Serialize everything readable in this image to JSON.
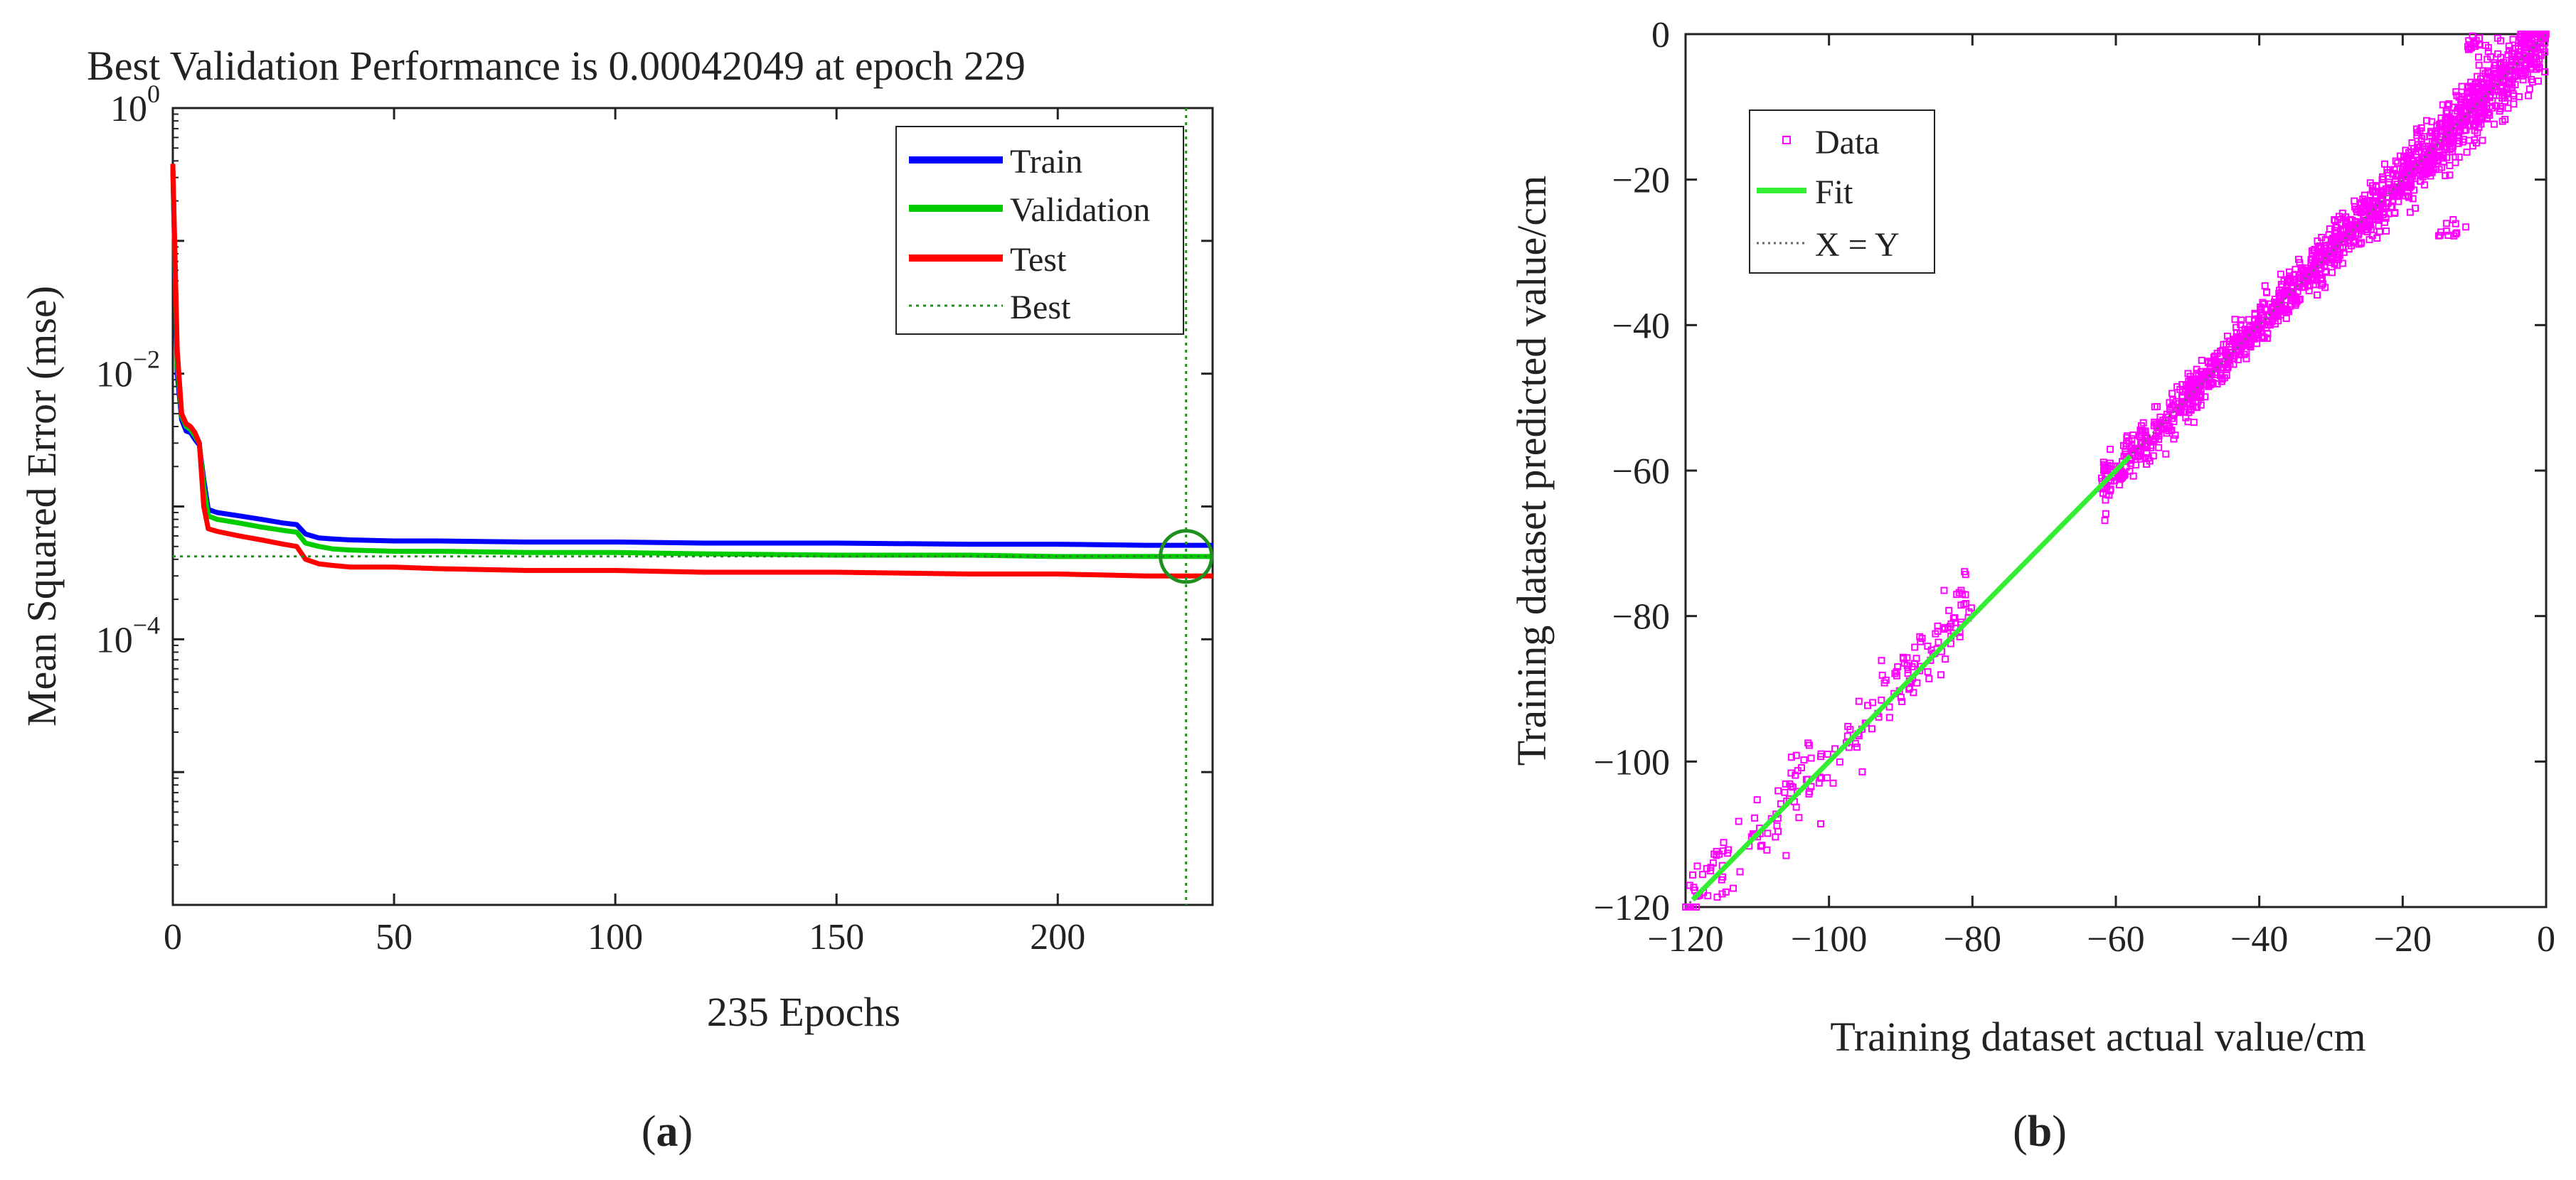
{
  "captions": {
    "a": "(a)",
    "b": "(b)",
    "a_letter": "a",
    "b_letter": "b"
  },
  "colors": {
    "train": "#0000ff",
    "validation": "#00cc00",
    "test": "#ff0000",
    "best": "#1f8f1f",
    "data": "#ff00ff",
    "fit": "#33ee33",
    "xy": "#666666"
  },
  "chart_data": [
    {
      "id": "a",
      "type": "line",
      "title": "Best Validation Performance is 0.00042049 at epoch 229",
      "xlabel": "235 Epochs",
      "ylabel": "Mean Squared Error (mse)",
      "xlim": [
        0,
        235
      ],
      "ylim": [
        1e-06,
        1
      ],
      "yscale": "log",
      "xticks": [
        0,
        50,
        100,
        150,
        200
      ],
      "yticks": [
        {
          "value": 1,
          "base": "10",
          "exp": "0"
        },
        {
          "value": 0.01,
          "base": "10",
          "exp": "−2"
        },
        {
          "value": 0.0001,
          "base": "10",
          "exp": "−4"
        }
      ],
      "legend_position": "top-right",
      "series": [
        {
          "name": "Train",
          "x": [
            0,
            1,
            2,
            3,
            4,
            5,
            6,
            7,
            8,
            10,
            15,
            20,
            25,
            28,
            30,
            33,
            36,
            40,
            50,
            60,
            80,
            100,
            120,
            150,
            180,
            200,
            220,
            235
          ],
          "y": [
            0.35,
            0.01,
            0.0045,
            0.0037,
            0.0036,
            0.0032,
            0.0029,
            0.0016,
            0.00095,
            0.0009,
            0.00085,
            0.0008,
            0.00075,
            0.00073,
            0.00062,
            0.00058,
            0.00057,
            0.00056,
            0.00055,
            0.00055,
            0.00054,
            0.00054,
            0.00053,
            0.00053,
            0.00052,
            0.00052,
            0.00051,
            0.00051
          ]
        },
        {
          "name": "Validation",
          "x": [
            0,
            1,
            2,
            3,
            4,
            5,
            6,
            7,
            8,
            10,
            15,
            20,
            25,
            28,
            30,
            33,
            36,
            40,
            50,
            60,
            80,
            100,
            120,
            150,
            180,
            200,
            229,
            235
          ],
          "y": [
            0.36,
            0.012,
            0.0048,
            0.004,
            0.0038,
            0.0034,
            0.003,
            0.0014,
            0.00085,
            0.0008,
            0.00075,
            0.0007,
            0.00066,
            0.00064,
            0.00053,
            0.0005,
            0.00048,
            0.00047,
            0.00046,
            0.00046,
            0.00045,
            0.00045,
            0.00044,
            0.00043,
            0.00043,
            0.00042,
            0.00042049,
            0.00042
          ]
        },
        {
          "name": "Test",
          "x": [
            0,
            1,
            2,
            3,
            4,
            5,
            6,
            7,
            8,
            10,
            15,
            20,
            25,
            28,
            30,
            33,
            36,
            40,
            50,
            60,
            80,
            100,
            120,
            150,
            180,
            200,
            220,
            235
          ],
          "y": [
            0.38,
            0.015,
            0.005,
            0.0042,
            0.004,
            0.0036,
            0.003,
            0.001,
            0.00068,
            0.00065,
            0.0006,
            0.00056,
            0.00052,
            0.0005,
            0.0004,
            0.00037,
            0.00036,
            0.00035,
            0.00035,
            0.00034,
            0.00033,
            0.00033,
            0.00032,
            0.00032,
            0.00031,
            0.00031,
            0.0003,
            0.0003
          ]
        }
      ],
      "best": {
        "name": "Best",
        "epoch": 229,
        "value": 0.00042049
      }
    },
    {
      "id": "b",
      "type": "scatter",
      "title": "",
      "xlabel": "Training dataset actual value/cm",
      "ylabel": "Training dataset predicted value/cm",
      "xlim": [
        -120,
        0
      ],
      "ylim": [
        -120,
        0
      ],
      "xticks": [
        -120,
        -100,
        -80,
        -60,
        -40,
        -20,
        0
      ],
      "yticks": [
        0,
        -20,
        -40,
        -60,
        -80,
        -100,
        -120
      ],
      "tick_labels": {
        "-120": "−120",
        "-100": "−100",
        "-80": "−80",
        "-60": "−60",
        "-40": "−40",
        "-20": "−20",
        "0": "0"
      },
      "legend_position": "top-left",
      "legend": [
        "Data",
        "Fit",
        "X = Y"
      ],
      "series": [
        {
          "name": "Data",
          "marker": "square",
          "note": "dense band along y = x from −120 to 0 with spread"
        },
        {
          "name": "Fit",
          "x": [
            -119,
            0
          ],
          "y": [
            -119,
            0
          ]
        },
        {
          "name": "X = Y",
          "x": [
            -120,
            0
          ],
          "y": [
            -120,
            0
          ]
        }
      ]
    }
  ]
}
